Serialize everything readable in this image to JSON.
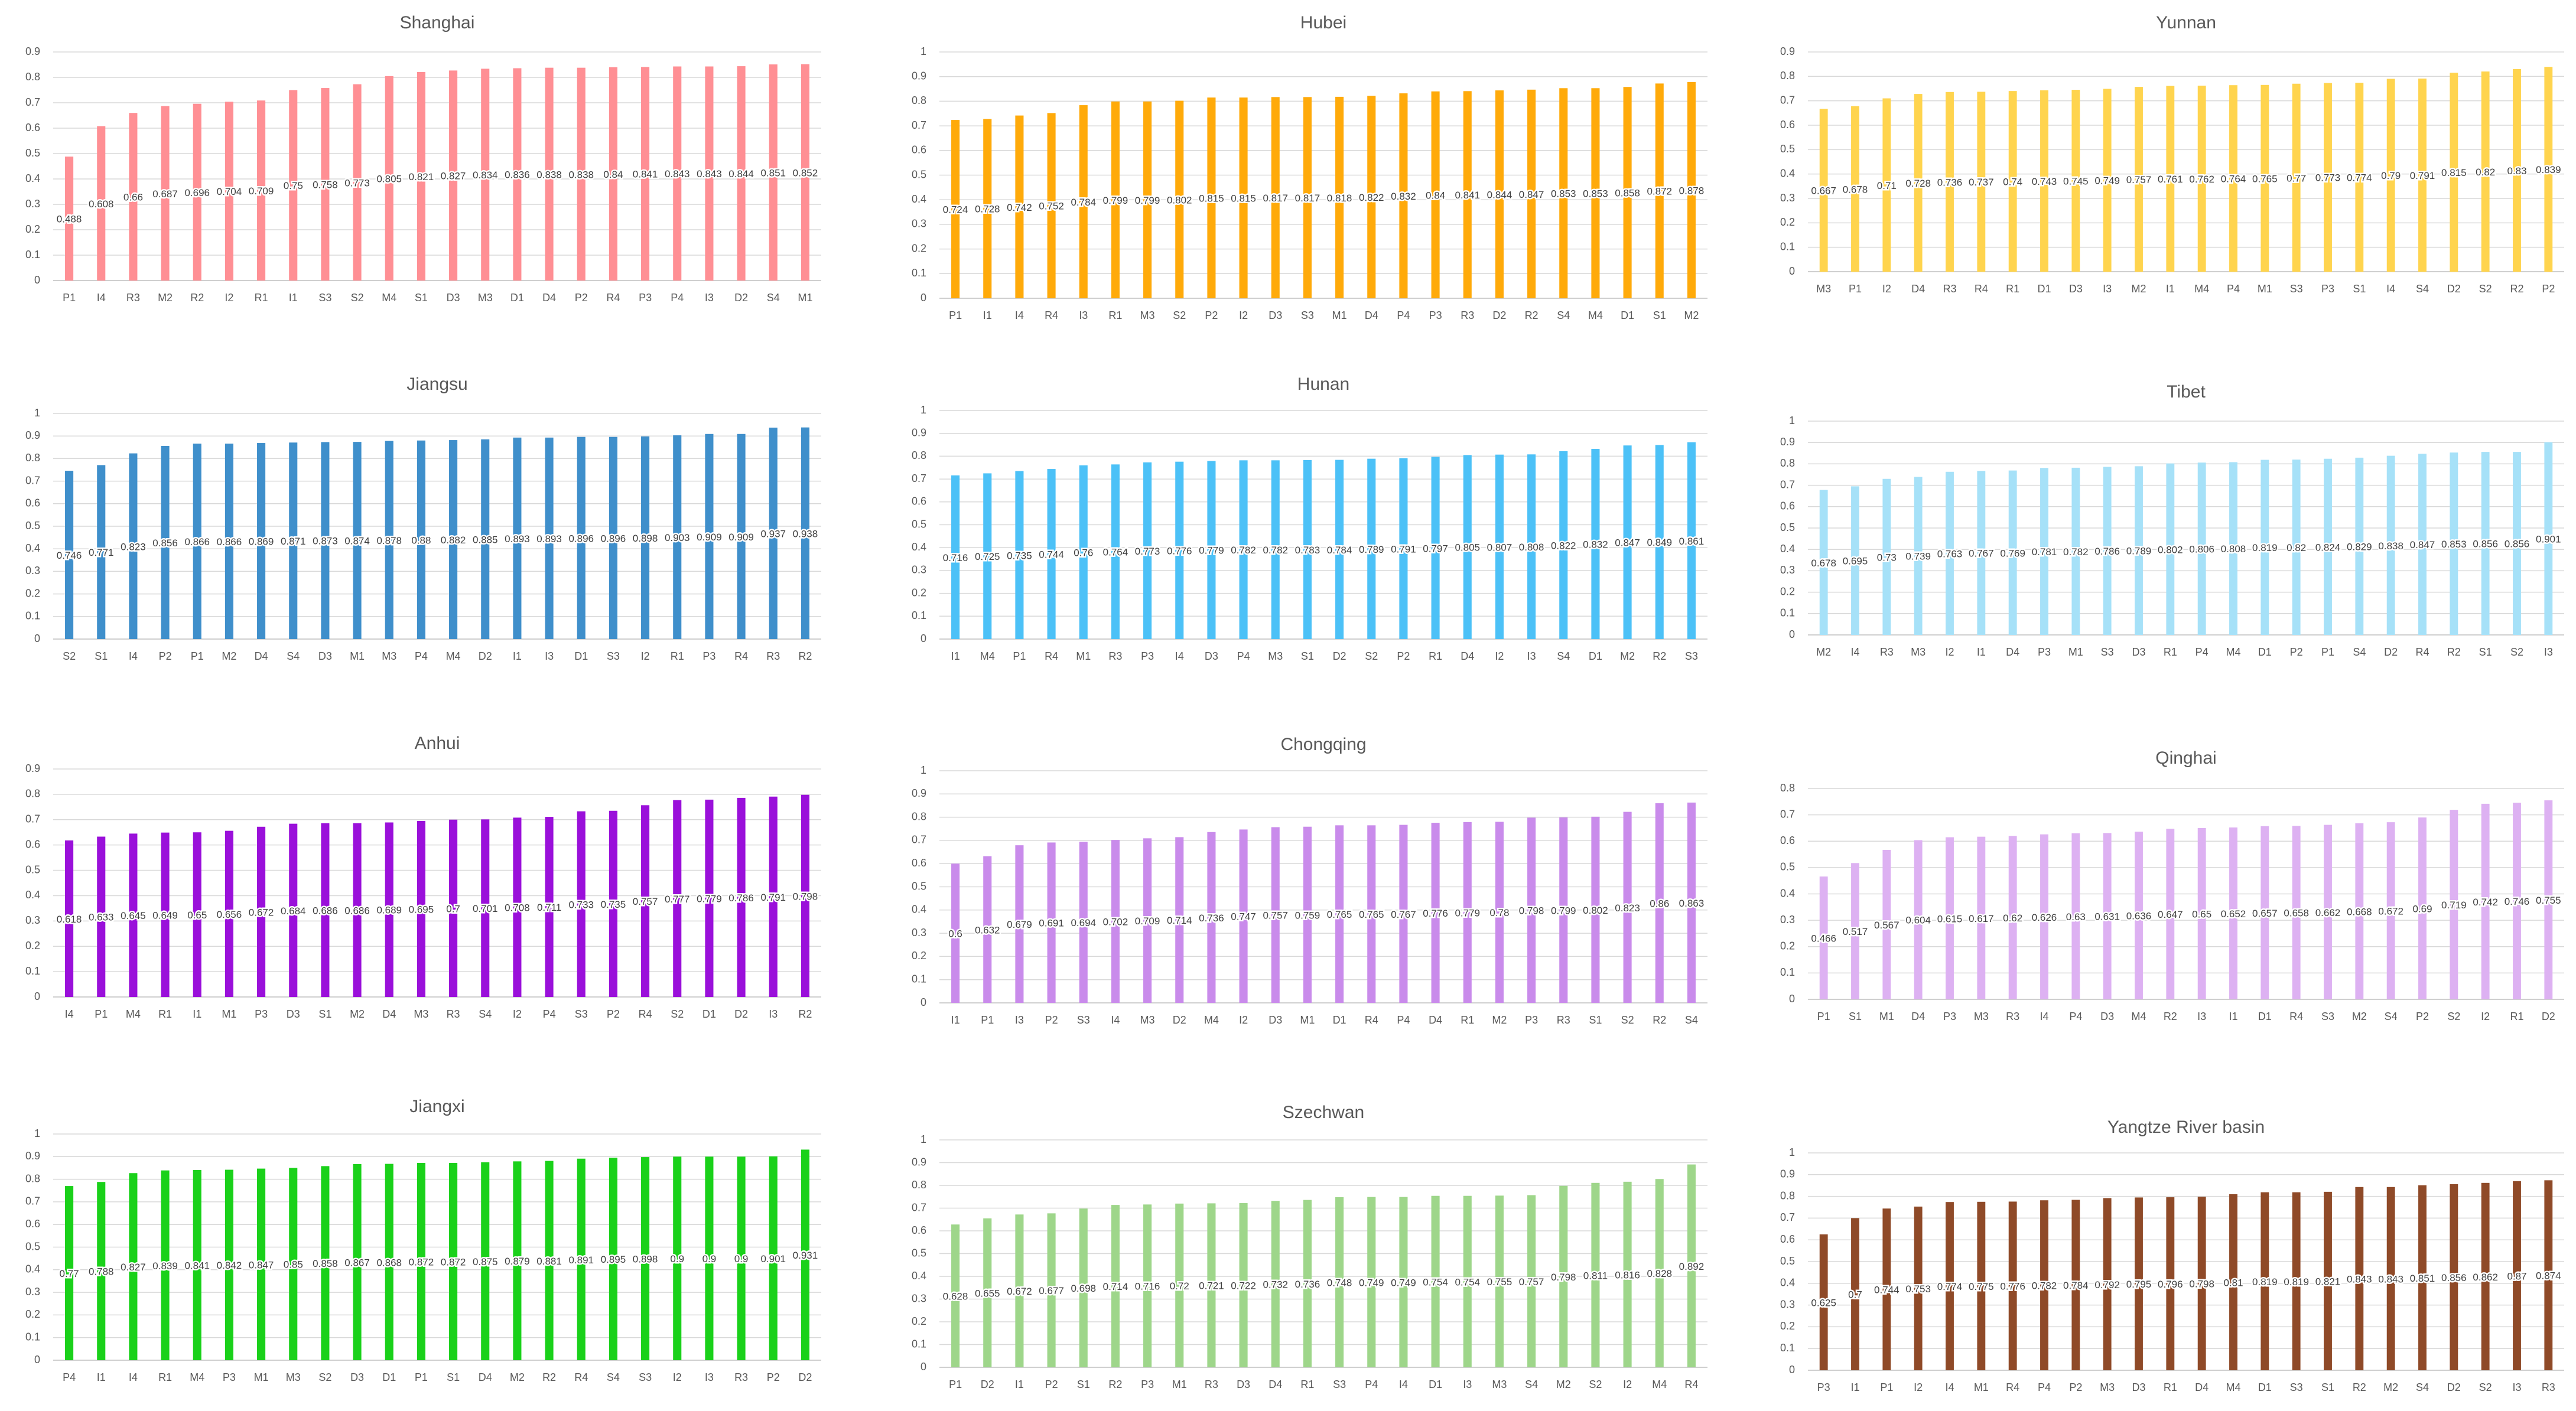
{
  "chart_data": [
    {
      "type": "bar",
      "title": "Shanghai",
      "color": "#FF8F94",
      "ylim": [
        0,
        0.9
      ],
      "yticks": [
        "0",
        "0.1",
        "0.2",
        "0.3",
        "0.4",
        "0.5",
        "0.6",
        "0.7",
        "0.8",
        "0.9"
      ],
      "categories": [
        "P1",
        "I4",
        "R3",
        "M2",
        "R2",
        "I2",
        "R1",
        "I1",
        "S3",
        "S2",
        "M4",
        "S1",
        "D3",
        "M3",
        "D1",
        "D4",
        "P2",
        "R4",
        "P3",
        "P4",
        "I3",
        "D2",
        "S4",
        "M1"
      ],
      "labels": [
        "0.488",
        "0.608",
        "0.66",
        "0.687",
        "0.696",
        "0.704",
        "0.709",
        "0.75",
        "0.758",
        "0.773",
        "0.805",
        "0.821",
        "0.827",
        "0.834",
        "0.836",
        "0.838",
        "0.838",
        "0.84",
        "0.841",
        "0.843",
        "0.843",
        "0.844",
        "0.851",
        "0.852"
      ]
    },
    {
      "type": "bar",
      "title": "Hubei",
      "color": "#FFAA0A",
      "ylim": [
        0,
        1
      ],
      "yticks": [
        "0",
        "0.1",
        "0.2",
        "0.3",
        "0.4",
        "0.5",
        "0.6",
        "0.7",
        "0.8",
        "0.9",
        "1"
      ],
      "categories": [
        "P1",
        "I1",
        "I4",
        "R4",
        "I3",
        "R1",
        "M3",
        "S2",
        "P2",
        "I2",
        "D3",
        "S3",
        "M1",
        "D4",
        "P4",
        "P3",
        "R3",
        "D2",
        "R2",
        "S4",
        "M4",
        "D1",
        "S1",
        "M2"
      ],
      "labels": [
        "0.724",
        "0.728",
        "0.742",
        "0.752",
        "0.784",
        "0.799",
        "0.799",
        "0.802",
        "0.815",
        "0.815",
        "0.817",
        "0.817",
        "0.818",
        "0.822",
        "0.832",
        "0.84",
        "0.841",
        "0.844",
        "0.847",
        "0.853",
        "0.853",
        "0.858",
        "0.872",
        "0.878"
      ]
    },
    {
      "type": "bar",
      "title": "Yunnan",
      "color": "#FFD44E",
      "ylim": [
        0,
        0.9
      ],
      "yticks": [
        "0",
        "0.1",
        "0.2",
        "0.3",
        "0.4",
        "0.5",
        "0.6",
        "0.7",
        "0.8",
        "0.9"
      ],
      "categories": [
        "M3",
        "P1",
        "I2",
        "D4",
        "R3",
        "R4",
        "R1",
        "D1",
        "D3",
        "I3",
        "M2",
        "I1",
        "M4",
        "P4",
        "M1",
        "S3",
        "P3",
        "S1",
        "I4",
        "S4",
        "D2",
        "S2",
        "R2",
        "P2"
      ],
      "labels": [
        "0.667",
        "0.678",
        "0.71",
        "0.728",
        "0.736",
        "0.737",
        "0.74",
        "0.743",
        "0.745",
        "0.749",
        "0.757",
        "0.761",
        "0.762",
        "0.764",
        "0.765",
        "0.77",
        "0.773",
        "0.774",
        "0.79",
        "0.791",
        "0.815",
        "0.82",
        "0.83",
        "0.839"
      ]
    },
    {
      "type": "bar",
      "title": "Jiangsu",
      "color": "#3F8FCB",
      "ylim": [
        0,
        1
      ],
      "yticks": [
        "0",
        "0.1",
        "0.2",
        "0.3",
        "0.4",
        "0.5",
        "0.6",
        "0.7",
        "0.8",
        "0.9",
        "1"
      ],
      "categories": [
        "S2",
        "S1",
        "I4",
        "P2",
        "P1",
        "M2",
        "D4",
        "S4",
        "D3",
        "M1",
        "M3",
        "P4",
        "M4",
        "D2",
        "I1",
        "I3",
        "D1",
        "S3",
        "I2",
        "R1",
        "P3",
        "R4",
        "R3",
        "R2"
      ],
      "labels": [
        "0.746",
        "0.771",
        "0.823",
        "0.856",
        "0.866",
        "0.866",
        "0.869",
        "0.871",
        "0.873",
        "0.874",
        "0.878",
        "0.88",
        "0.882",
        "0.885",
        "0.893",
        "0.893",
        "0.896",
        "0.896",
        "0.898",
        "0.903",
        "0.909",
        "0.909",
        "0.937",
        "0.938"
      ]
    },
    {
      "type": "bar",
      "title": "Hunan",
      "color": "#4CC1F7",
      "ylim": [
        0,
        1
      ],
      "yticks": [
        "0",
        "0.1",
        "0.2",
        "0.3",
        "0.4",
        "0.5",
        "0.6",
        "0.7",
        "0.8",
        "0.9",
        "1"
      ],
      "categories": [
        "I1",
        "M4",
        "P1",
        "R4",
        "M1",
        "R3",
        "P3",
        "I4",
        "D3",
        "P4",
        "M3",
        "S1",
        "D2",
        "S2",
        "P2",
        "R1",
        "D4",
        "I2",
        "I3",
        "S4",
        "D1",
        "M2",
        "R2",
        "S3"
      ],
      "labels": [
        "0.716",
        "0.725",
        "0.735",
        "0.744",
        "0.76",
        "0.764",
        "0.773",
        "0.776",
        "0.779",
        "0.782",
        "0.782",
        "0.783",
        "0.784",
        "0.789",
        "0.791",
        "0.797",
        "0.805",
        "0.807",
        "0.808",
        "0.822",
        "0.832",
        "0.847",
        "0.849",
        "0.861"
      ]
    },
    {
      "type": "bar",
      "title": "Tibet",
      "color": "#A6E1F8",
      "ylim": [
        0,
        1
      ],
      "yticks": [
        "0",
        "0.1",
        "0.2",
        "0.3",
        "0.4",
        "0.5",
        "0.6",
        "0.7",
        "0.8",
        "0.9",
        "1"
      ],
      "categories": [
        "M2",
        "I4",
        "R3",
        "M3",
        "I2",
        "I1",
        "D4",
        "P3",
        "M1",
        "S3",
        "D3",
        "R1",
        "P4",
        "M4",
        "D1",
        "P2",
        "P1",
        "S4",
        "D2",
        "R4",
        "R2",
        "S1",
        "S2",
        "I3"
      ],
      "labels": [
        "0.678",
        "0.695",
        "0.73",
        "0.739",
        "0.763",
        "0.767",
        "0.769",
        "0.781",
        "0.782",
        "0.786",
        "0.789",
        "0.802",
        "0.806",
        "0.808",
        "0.819",
        "0.82",
        "0.824",
        "0.829",
        "0.838",
        "0.847",
        "0.853",
        "0.856",
        "0.856",
        "0.901"
      ]
    },
    {
      "type": "bar",
      "title": "Anhui",
      "color": "#9A10DA",
      "ylim": [
        0,
        0.9
      ],
      "yticks": [
        "0",
        "0.1",
        "0.2",
        "0.3",
        "0.4",
        "0.5",
        "0.6",
        "0.7",
        "0.8",
        "0.9"
      ],
      "categories": [
        "I4",
        "P1",
        "M4",
        "R1",
        "I1",
        "M1",
        "P3",
        "D3",
        "S1",
        "M2",
        "D4",
        "M3",
        "R3",
        "S4",
        "I2",
        "P4",
        "S3",
        "P2",
        "R4",
        "S2",
        "D1",
        "D2",
        "I3",
        "R2"
      ],
      "labels": [
        "0.618",
        "0.633",
        "0.645",
        "0.649",
        "0.65",
        "0.656",
        "0.672",
        "0.684",
        "0.686",
        "0.686",
        "0.689",
        "0.695",
        "0.7",
        "0.701",
        "0.708",
        "0.711",
        "0.733",
        "0.735",
        "0.757",
        "0.777",
        "0.779",
        "0.786",
        "0.791",
        "0.798"
      ]
    },
    {
      "type": "bar",
      "title": "Chongqing",
      "color": "#C98BEB",
      "ylim": [
        0,
        1
      ],
      "yticks": [
        "0",
        "0.1",
        "0.2",
        "0.3",
        "0.4",
        "0.5",
        "0.6",
        "0.7",
        "0.8",
        "0.9",
        "1"
      ],
      "categories": [
        "I1",
        "P1",
        "I3",
        "P2",
        "S3",
        "I4",
        "M3",
        "D2",
        "M4",
        "I2",
        "D3",
        "M1",
        "D1",
        "R4",
        "P4",
        "D4",
        "R1",
        "M2",
        "P3",
        "R3",
        "S1",
        "S2",
        "R2",
        "S4"
      ],
      "labels": [
        "0.6",
        "0.632",
        "0.679",
        "0.691",
        "0.694",
        "0.702",
        "0.709",
        "0.714",
        "0.736",
        "0.747",
        "0.757",
        "0.759",
        "0.765",
        "0.765",
        "0.767",
        "0.776",
        "0.779",
        "0.78",
        "0.798",
        "0.799",
        "0.802",
        "0.823",
        "0.86",
        "0.863"
      ]
    },
    {
      "type": "bar",
      "title": "Qinghai",
      "color": "#DDB1F2",
      "ylim": [
        0,
        0.8
      ],
      "yticks": [
        "0",
        "0.1",
        "0.2",
        "0.3",
        "0.4",
        "0.5",
        "0.6",
        "0.7",
        "0.8"
      ],
      "categories": [
        "P1",
        "S1",
        "M1",
        "D4",
        "P3",
        "M3",
        "R3",
        "I4",
        "P4",
        "D3",
        "M4",
        "R2",
        "I3",
        "I1",
        "D1",
        "R4",
        "S3",
        "M2",
        "S4",
        "P2",
        "S2",
        "I2",
        "R1",
        "D2"
      ],
      "labels": [
        "0.466",
        "0.517",
        "0.567",
        "0.604",
        "0.615",
        "0.617",
        "0.62",
        "0.626",
        "0.63",
        "0.631",
        "0.636",
        "0.647",
        "0.65",
        "0.652",
        "0.657",
        "0.658",
        "0.662",
        "0.668",
        "0.672",
        "0.69",
        "0.719",
        "0.742",
        "0.746",
        "0.755"
      ]
    },
    {
      "type": "bar",
      "title": "Jiangxi",
      "color": "#1AD11A",
      "ylim": [
        0,
        1
      ],
      "yticks": [
        "0",
        "0.1",
        "0.2",
        "0.3",
        "0.4",
        "0.5",
        "0.6",
        "0.7",
        "0.8",
        "0.9",
        "1"
      ],
      "categories": [
        "P4",
        "I1",
        "I4",
        "R1",
        "M4",
        "P3",
        "M1",
        "M3",
        "S2",
        "D3",
        "D1",
        "P1",
        "S1",
        "D4",
        "M2",
        "R2",
        "R4",
        "S4",
        "S3",
        "I2",
        "I3",
        "R3",
        "P2",
        "D2"
      ],
      "labels": [
        "0.77",
        "0.788",
        "0.827",
        "0.839",
        "0.841",
        "0.842",
        "0.847",
        "0.85",
        "0.858",
        "0.867",
        "0.868",
        "0.872",
        "0.872",
        "0.875",
        "0.879",
        "0.881",
        "0.891",
        "0.895",
        "0.898",
        "0.9",
        "0.9",
        "0.9",
        "0.901",
        "0.931"
      ]
    },
    {
      "type": "bar",
      "title": "Szechwan",
      "color": "#9ED68A",
      "ylim": [
        0,
        1
      ],
      "yticks": [
        "0",
        "0.1",
        "0.2",
        "0.3",
        "0.4",
        "0.5",
        "0.6",
        "0.7",
        "0.8",
        "0.9",
        "1"
      ],
      "categories": [
        "P1",
        "D2",
        "I1",
        "P2",
        "S1",
        "R2",
        "P3",
        "M1",
        "R3",
        "D3",
        "D4",
        "R1",
        "S3",
        "P4",
        "I4",
        "D1",
        "I3",
        "M3",
        "S4",
        "M2",
        "S2",
        "I2",
        "M4",
        "R4"
      ],
      "labels": [
        "0.628",
        "0.655",
        "0.672",
        "0.677",
        "0.698",
        "0.714",
        "0.716",
        "0.72",
        "0.721",
        "0.722",
        "0.732",
        "0.736",
        "0.748",
        "0.749",
        "0.749",
        "0.754",
        "0.754",
        "0.755",
        "0.757",
        "0.798",
        "0.811",
        "0.816",
        "0.828",
        "0.892"
      ]
    },
    {
      "type": "bar",
      "title": "Yangtze River basin",
      "color": "#8F4A28",
      "ylim": [
        0,
        1
      ],
      "yticks": [
        "0",
        "0.1",
        "0.2",
        "0.3",
        "0.4",
        "0.5",
        "0.6",
        "0.7",
        "0.8",
        "0.9",
        "1"
      ],
      "categories": [
        "P3",
        "I1",
        "P1",
        "I2",
        "I4",
        "M1",
        "R4",
        "P4",
        "P2",
        "M3",
        "D3",
        "R1",
        "D4",
        "M4",
        "D1",
        "S3",
        "S1",
        "R2",
        "M2",
        "S4",
        "D2",
        "S2",
        "I3",
        "R3"
      ],
      "labels": [
        "0.625",
        "0.7",
        "0.744",
        "0.753",
        "0.774",
        "0.775",
        "0.776",
        "0.782",
        "0.784",
        "0.792",
        "0.795",
        "0.796",
        "0.798",
        "0.81",
        "0.819",
        "0.819",
        "0.821",
        "0.843",
        "0.843",
        "0.851",
        "0.856",
        "0.862",
        "0.87",
        "0.874"
      ]
    }
  ]
}
